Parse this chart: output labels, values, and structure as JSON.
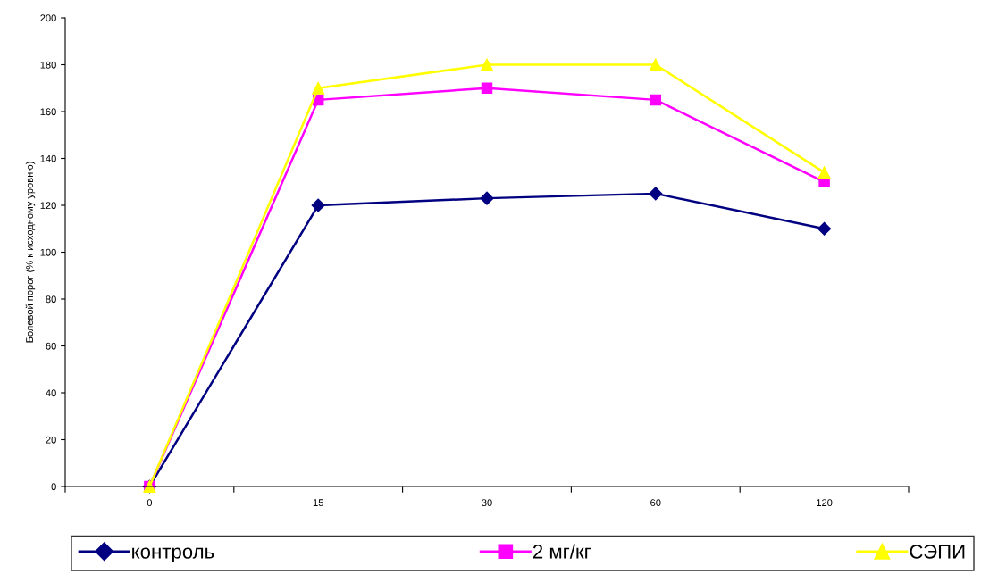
{
  "chart_data": {
    "type": "line",
    "ylabel": "Болевой порог (% к исходному уровню)",
    "categories": [
      "0",
      "15",
      "30",
      "60",
      "120"
    ],
    "series": [
      {
        "name": "контроль",
        "color": "#000080",
        "marker": "diamond",
        "values": [
          0,
          120,
          123,
          125,
          110
        ]
      },
      {
        "name": "2 мг/кг",
        "color": "#ff00ff",
        "marker": "square",
        "values": [
          0,
          165,
          170,
          165,
          130
        ]
      },
      {
        "name": "СЭПИ",
        "color": "#ffff00",
        "marker": "triangle",
        "values": [
          0,
          170,
          180,
          180,
          134
        ]
      }
    ],
    "ylim": [
      0,
      200
    ],
    "yticks": [
      0,
      20,
      40,
      60,
      80,
      100,
      120,
      140,
      160,
      180,
      200
    ],
    "grid": false,
    "legend": "bottom",
    "line_style": "solid"
  }
}
